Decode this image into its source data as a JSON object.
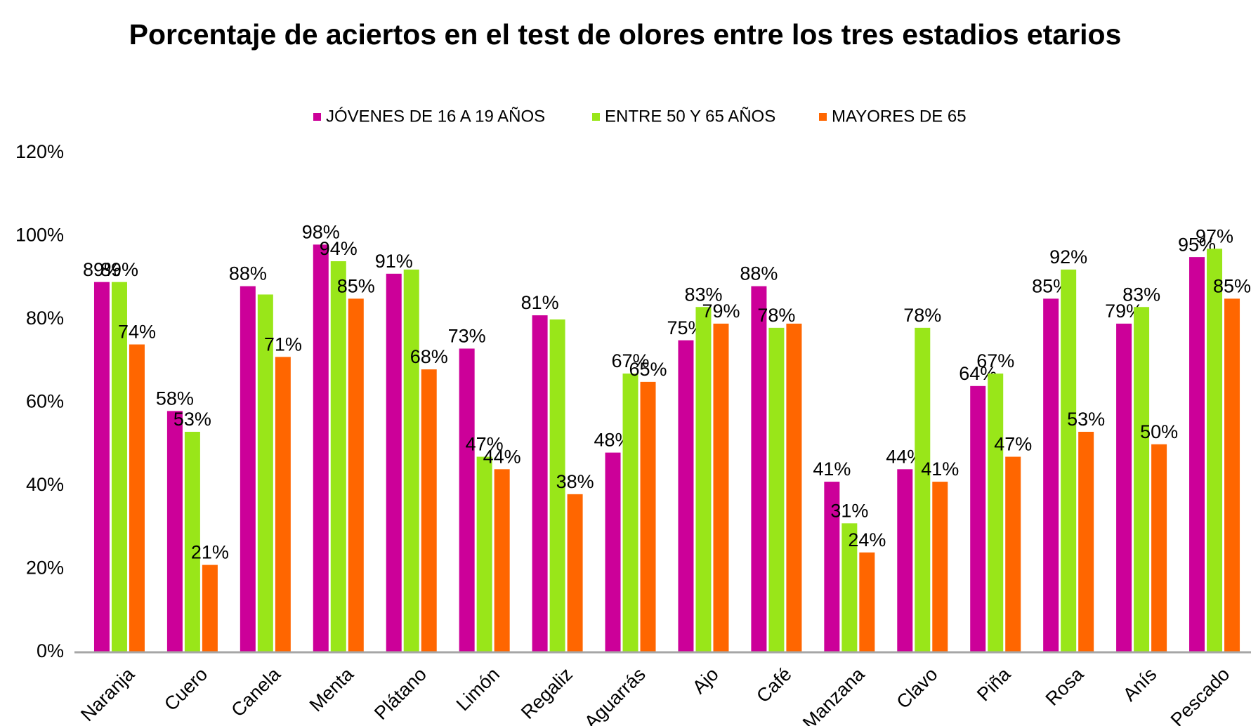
{
  "chart_data": {
    "type": "bar",
    "title": "Porcentaje de aciertos en el test de olores entre los tres estadios etarios",
    "categories": [
      "Naranja",
      "Cuero",
      "Canela",
      "Menta",
      "Plátano",
      "Limón",
      "Regaliz",
      "Aguarrás",
      "Ajo",
      "Café",
      "Manzana",
      "Clavo",
      "Piña",
      "Rosa",
      "Anís",
      "Pescado"
    ],
    "series": [
      {
        "name": "JÓVENES DE 16 A 19 AÑOS",
        "color": "#cc0099",
        "values": [
          89,
          58,
          88,
          98,
          91,
          73,
          81,
          48,
          75,
          88,
          41,
          44,
          64,
          85,
          79,
          95
        ],
        "value_labels": [
          "89%",
          "58%",
          "88%",
          "98%",
          "91%",
          "73%",
          "81%",
          "48%",
          "75%",
          "88%",
          "41%",
          "44%",
          "64%",
          "85%",
          "79%",
          "95%"
        ]
      },
      {
        "name": "ENTRE 50 Y 65 AÑOS",
        "color": "#99e619",
        "values": [
          89,
          53,
          86,
          94,
          92,
          47,
          80,
          67,
          83,
          78,
          31,
          78,
          67,
          92,
          83,
          97
        ],
        "value_labels": [
          "89%",
          "53%",
          null,
          "94%",
          null,
          "47%",
          null,
          "67%",
          "83%",
          "78%",
          "31%",
          "78%",
          "67%",
          "92%",
          "83%",
          "97%"
        ]
      },
      {
        "name": "MAYORES DE 65",
        "color": "#ff6600",
        "values": [
          74,
          21,
          71,
          85,
          68,
          44,
          38,
          65,
          79,
          79,
          24,
          41,
          47,
          53,
          50,
          85
        ],
        "value_labels": [
          "74%",
          "21%",
          "71%",
          "85%",
          "68%",
          "44%",
          "38%",
          "65%",
          "79%",
          null,
          "24%",
          "41%",
          "47%",
          "53%",
          "50%",
          "85%"
        ]
      }
    ],
    "ylim": [
      0,
      120
    ],
    "yticks": [
      {
        "value": 0,
        "label": "0%"
      },
      {
        "value": 20,
        "label": "20%"
      },
      {
        "value": 40,
        "label": "40%"
      },
      {
        "value": 60,
        "label": "60%"
      },
      {
        "value": 80,
        "label": "80%"
      },
      {
        "value": 100,
        "label": "100%"
      },
      {
        "value": 120,
        "label": "120%"
      }
    ],
    "legend": "top",
    "grid": false
  }
}
